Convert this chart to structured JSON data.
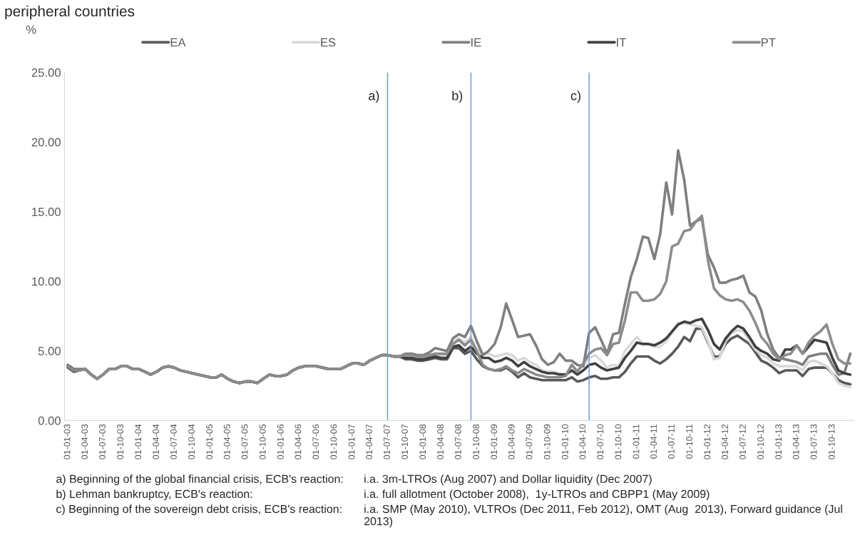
{
  "chart_data": {
    "type": "line",
    "title": "peripheral countries",
    "ylabel": "%",
    "x": [
      "2003-01",
      "2003-02",
      "2003-03",
      "2003-04",
      "2003-05",
      "2003-06",
      "2003-07",
      "2003-08",
      "2003-09",
      "2003-10",
      "2003-11",
      "2003-12",
      "2004-01",
      "2004-02",
      "2004-03",
      "2004-04",
      "2004-05",
      "2004-06",
      "2004-07",
      "2004-08",
      "2004-09",
      "2004-10",
      "2004-11",
      "2004-12",
      "2005-01",
      "2005-02",
      "2005-03",
      "2005-04",
      "2005-05",
      "2005-06",
      "2005-07",
      "2005-08",
      "2005-09",
      "2005-10",
      "2005-11",
      "2005-12",
      "2006-01",
      "2006-02",
      "2006-03",
      "2006-04",
      "2006-05",
      "2006-06",
      "2006-07",
      "2006-08",
      "2006-09",
      "2006-10",
      "2006-11",
      "2006-12",
      "2007-01",
      "2007-02",
      "2007-03",
      "2007-04",
      "2007-05",
      "2007-06",
      "2007-07",
      "2007-08",
      "2007-09",
      "2007-10",
      "2007-11",
      "2007-12",
      "2008-01",
      "2008-02",
      "2008-03",
      "2008-04",
      "2008-05",
      "2008-06",
      "2008-07",
      "2008-08",
      "2008-09",
      "2008-10",
      "2008-11",
      "2008-12",
      "2009-01",
      "2009-02",
      "2009-03",
      "2009-04",
      "2009-05",
      "2009-06",
      "2009-07",
      "2009-08",
      "2009-09",
      "2009-10",
      "2009-11",
      "2009-12",
      "2010-01",
      "2010-02",
      "2010-03",
      "2010-04",
      "2010-05",
      "2010-06",
      "2010-07",
      "2010-08",
      "2010-09",
      "2010-10",
      "2010-11",
      "2010-12",
      "2011-01",
      "2011-02",
      "2011-03",
      "2011-04",
      "2011-05",
      "2011-06",
      "2011-07",
      "2011-08",
      "2011-09",
      "2011-10",
      "2011-11",
      "2011-12",
      "2012-01",
      "2012-02",
      "2012-03",
      "2012-04",
      "2012-05",
      "2012-06",
      "2012-07",
      "2012-08",
      "2012-09",
      "2012-10",
      "2012-11",
      "2012-12",
      "2013-01",
      "2013-02",
      "2013-03",
      "2013-04",
      "2013-05",
      "2013-06",
      "2013-07",
      "2013-08",
      "2013-09",
      "2013-10",
      "2013-11",
      "2013-12",
      "2014-01"
    ],
    "series": [
      {
        "name": "EA",
        "color": "#595959",
        "values": [
          3.8,
          3.5,
          3.6,
          3.7,
          3.3,
          3.0,
          3.3,
          3.7,
          3.7,
          3.9,
          3.9,
          3.7,
          3.7,
          3.5,
          3.3,
          3.5,
          3.8,
          3.9,
          3.8,
          3.6,
          3.5,
          3.4,
          3.3,
          3.2,
          3.1,
          3.1,
          3.3,
          3.0,
          2.8,
          2.7,
          2.8,
          2.8,
          2.7,
          3.0,
          3.3,
          3.2,
          3.2,
          3.3,
          3.6,
          3.8,
          3.9,
          3.9,
          3.9,
          3.8,
          3.7,
          3.7,
          3.7,
          3.9,
          4.1,
          4.1,
          4.0,
          4.3,
          4.5,
          4.7,
          4.7,
          4.6,
          4.6,
          4.4,
          4.4,
          4.3,
          4.3,
          4.4,
          4.5,
          4.4,
          4.4,
          5.2,
          5.2,
          4.8,
          5.0,
          4.4,
          3.9,
          3.7,
          3.6,
          3.6,
          3.8,
          3.5,
          3.1,
          3.4,
          3.1,
          3.0,
          2.9,
          2.9,
          2.9,
          2.9,
          2.9,
          3.1,
          2.8,
          2.9,
          3.1,
          3.2,
          3.0,
          3.0,
          3.1,
          3.1,
          3.5,
          4.1,
          4.6,
          4.6,
          4.6,
          4.3,
          4.1,
          4.4,
          4.8,
          5.3,
          6.0,
          5.7,
          6.6,
          6.6,
          5.6,
          4.6,
          4.6,
          5.5,
          5.9,
          6.1,
          5.8,
          5.5,
          4.9,
          4.3,
          4.1,
          3.8,
          3.4,
          3.6,
          3.6,
          3.6,
          3.2,
          3.7,
          3.8,
          3.8,
          3.8,
          3.4,
          2.9,
          2.7,
          2.6
        ]
      },
      {
        "name": "ES",
        "color": "#d9d9d9",
        "values": [
          3.9,
          3.6,
          3.6,
          3.7,
          3.3,
          3.0,
          3.3,
          3.7,
          3.7,
          3.9,
          3.9,
          3.7,
          3.7,
          3.5,
          3.3,
          3.5,
          3.8,
          3.9,
          3.8,
          3.6,
          3.5,
          3.4,
          3.3,
          3.2,
          3.1,
          3.1,
          3.3,
          3.0,
          2.8,
          2.7,
          2.8,
          2.8,
          2.7,
          3.0,
          3.3,
          3.2,
          3.2,
          3.3,
          3.6,
          3.8,
          3.9,
          3.9,
          3.9,
          3.8,
          3.7,
          3.7,
          3.7,
          3.9,
          4.1,
          4.1,
          4.0,
          4.3,
          4.5,
          4.7,
          4.7,
          4.6,
          4.6,
          4.6,
          4.6,
          4.5,
          4.5,
          4.6,
          4.7,
          4.7,
          4.7,
          5.6,
          5.9,
          5.6,
          6.0,
          5.1,
          4.8,
          4.8,
          4.6,
          4.7,
          4.8,
          4.7,
          4.3,
          4.5,
          4.2,
          4.0,
          3.6,
          3.5,
          3.5,
          3.4,
          3.3,
          4.0,
          3.6,
          3.9,
          4.5,
          4.7,
          4.3,
          3.8,
          4.0,
          3.9,
          5.0,
          5.5,
          6.0,
          5.5,
          5.5,
          5.3,
          5.3,
          5.7,
          6.3,
          7.0,
          7.0,
          6.9,
          6.8,
          6.7,
          5.7,
          4.4,
          4.5,
          5.7,
          6.3,
          6.5,
          6.4,
          5.7,
          5.1,
          4.7,
          4.5,
          4.1,
          3.9,
          3.9,
          3.9,
          3.9,
          3.6,
          4.2,
          4.3,
          4.1,
          3.9,
          3.4,
          2.7,
          2.5,
          2.4
        ]
      },
      {
        "name": "IE",
        "color": "#7f7f7f",
        "values": [
          4.0,
          3.7,
          3.7,
          3.7,
          3.3,
          3.0,
          3.3,
          3.7,
          3.7,
          3.9,
          3.9,
          3.7,
          3.7,
          3.5,
          3.3,
          3.5,
          3.8,
          3.9,
          3.8,
          3.6,
          3.5,
          3.4,
          3.3,
          3.2,
          3.1,
          3.1,
          3.3,
          3.0,
          2.8,
          2.7,
          2.8,
          2.8,
          2.7,
          3.0,
          3.3,
          3.2,
          3.2,
          3.3,
          3.6,
          3.8,
          3.9,
          3.9,
          3.9,
          3.8,
          3.7,
          3.7,
          3.7,
          3.9,
          4.1,
          4.1,
          4.0,
          4.3,
          4.5,
          4.7,
          4.7,
          4.6,
          4.6,
          4.8,
          4.8,
          4.7,
          4.7,
          4.9,
          5.2,
          5.1,
          5.0,
          5.9,
          6.2,
          6.0,
          6.8,
          5.7,
          4.7,
          5.0,
          5.5,
          6.7,
          8.4,
          7.2,
          6.0,
          6.1,
          6.2,
          5.4,
          4.4,
          4.0,
          4.2,
          4.8,
          4.3,
          4.3,
          4.0,
          3.9,
          6.3,
          6.7,
          5.8,
          4.8,
          6.2,
          6.3,
          8.4,
          10.3,
          11.6,
          13.2,
          13.1,
          11.6,
          13.4,
          17.1,
          14.8,
          19.4,
          17.3,
          14.0,
          14.3,
          14.5,
          11.9,
          11.0,
          9.9,
          9.9,
          10.1,
          10.2,
          10.4,
          9.2,
          8.9,
          7.9,
          6.2,
          5.1,
          4.5,
          4.4,
          4.3,
          4.2,
          4.0,
          4.6,
          4.7,
          4.8,
          4.8,
          4.0,
          3.3,
          3.4,
          4.8
        ]
      },
      {
        "name": "IT",
        "color": "#404040",
        "values": [
          3.9,
          3.6,
          3.6,
          3.7,
          3.3,
          3.0,
          3.3,
          3.7,
          3.7,
          3.9,
          3.9,
          3.7,
          3.7,
          3.5,
          3.3,
          3.5,
          3.8,
          3.9,
          3.8,
          3.6,
          3.5,
          3.4,
          3.3,
          3.2,
          3.1,
          3.1,
          3.3,
          3.0,
          2.8,
          2.7,
          2.8,
          2.8,
          2.7,
          3.0,
          3.3,
          3.2,
          3.2,
          3.3,
          3.6,
          3.8,
          3.9,
          3.9,
          3.9,
          3.8,
          3.7,
          3.7,
          3.7,
          3.9,
          4.1,
          4.1,
          4.0,
          4.3,
          4.5,
          4.7,
          4.7,
          4.6,
          4.6,
          4.5,
          4.5,
          4.4,
          4.4,
          4.5,
          4.6,
          4.5,
          4.5,
          5.3,
          5.4,
          5.0,
          5.3,
          4.8,
          4.5,
          4.5,
          4.2,
          4.3,
          4.5,
          4.3,
          3.9,
          4.2,
          3.9,
          3.7,
          3.5,
          3.4,
          3.4,
          3.3,
          3.3,
          3.6,
          3.3,
          3.6,
          4.0,
          4.1,
          3.8,
          3.6,
          3.7,
          3.8,
          4.5,
          5.0,
          5.6,
          5.5,
          5.5,
          5.4,
          5.6,
          5.9,
          6.4,
          6.9,
          7.1,
          7.0,
          7.2,
          7.3,
          6.5,
          5.5,
          5.1,
          5.9,
          6.4,
          6.8,
          6.6,
          6.0,
          5.3,
          5.0,
          4.8,
          4.4,
          4.3,
          5.1,
          5.1,
          5.4,
          4.8,
          5.3,
          5.8,
          5.7,
          5.6,
          4.5,
          3.6,
          3.4,
          3.3
        ]
      },
      {
        "name": "PT",
        "color": "#8c8c8c",
        "values": [
          3.9,
          3.6,
          3.6,
          3.7,
          3.3,
          3.0,
          3.3,
          3.7,
          3.7,
          3.9,
          3.9,
          3.7,
          3.7,
          3.5,
          3.3,
          3.5,
          3.8,
          3.9,
          3.8,
          3.6,
          3.5,
          3.4,
          3.3,
          3.2,
          3.1,
          3.1,
          3.3,
          3.0,
          2.8,
          2.7,
          2.8,
          2.8,
          2.7,
          3.0,
          3.3,
          3.2,
          3.2,
          3.3,
          3.6,
          3.8,
          3.9,
          3.9,
          3.9,
          3.8,
          3.7,
          3.7,
          3.7,
          3.9,
          4.1,
          4.1,
          4.0,
          4.3,
          4.5,
          4.7,
          4.7,
          4.6,
          4.6,
          4.7,
          4.7,
          4.6,
          4.6,
          4.7,
          4.8,
          4.8,
          4.8,
          5.5,
          5.8,
          5.4,
          5.8,
          5.0,
          4.0,
          3.7,
          3.6,
          3.7,
          3.9,
          3.6,
          3.4,
          3.7,
          3.5,
          3.3,
          3.2,
          3.1,
          3.1,
          3.1,
          3.2,
          4.0,
          3.5,
          4.1,
          4.8,
          5.1,
          5.2,
          4.7,
          5.5,
          5.6,
          7.2,
          9.2,
          9.2,
          8.6,
          8.6,
          8.7,
          9.1,
          10.0,
          12.5,
          12.7,
          13.6,
          13.7,
          14.3,
          14.7,
          11.5,
          9.5,
          9.0,
          8.7,
          8.6,
          8.7,
          8.5,
          7.9,
          7.0,
          6.0,
          5.5,
          4.8,
          4.4,
          4.7,
          4.8,
          5.4,
          4.8,
          5.6,
          6.1,
          6.4,
          6.9,
          5.5,
          4.4,
          4.1,
          4.1
        ]
      }
    ],
    "xlim": [
      "2002-12-15",
      "2014-01-20"
    ],
    "xticks": [
      {
        "value": "2003-01",
        "label": "01-01-03"
      },
      {
        "value": "2003-04",
        "label": "01-04-03"
      },
      {
        "value": "2003-07",
        "label": "01-07-03"
      },
      {
        "value": "2003-10",
        "label": "01-10-03"
      },
      {
        "value": "2004-01",
        "label": "01-01-04"
      },
      {
        "value": "2004-04",
        "label": "01-04-04"
      },
      {
        "value": "2004-07",
        "label": "01-07-04"
      },
      {
        "value": "2004-10",
        "label": "01-10-04"
      },
      {
        "value": "2005-01",
        "label": "01-01-05"
      },
      {
        "value": "2005-04",
        "label": "01-04-05"
      },
      {
        "value": "2005-07",
        "label": "01-07-05"
      },
      {
        "value": "2005-10",
        "label": "01-10-05"
      },
      {
        "value": "2006-01",
        "label": "01-01-06"
      },
      {
        "value": "2006-04",
        "label": "01-04-06"
      },
      {
        "value": "2006-07",
        "label": "01-07-06"
      },
      {
        "value": "2006-10",
        "label": "01-10-06"
      },
      {
        "value": "2007-01",
        "label": "01-01-07"
      },
      {
        "value": "2007-04",
        "label": "01-04-07"
      },
      {
        "value": "2007-07",
        "label": "01-07-07"
      },
      {
        "value": "2007-10",
        "label": "01-10-07"
      },
      {
        "value": "2008-01",
        "label": "01-01-08"
      },
      {
        "value": "2008-04",
        "label": "01-04-08"
      },
      {
        "value": "2008-07",
        "label": "01-07-08"
      },
      {
        "value": "2008-10",
        "label": "01-10-08"
      },
      {
        "value": "2009-01",
        "label": "01-01-09"
      },
      {
        "value": "2009-04",
        "label": "01-04-09"
      },
      {
        "value": "2009-07",
        "label": "01-07-09"
      },
      {
        "value": "2009-10",
        "label": "01-10-09"
      },
      {
        "value": "2010-01",
        "label": "01-01-10"
      },
      {
        "value": "2010-04",
        "label": "01-04-10"
      },
      {
        "value": "2010-07",
        "label": "01-07-10"
      },
      {
        "value": "2010-10",
        "label": "01-10-10"
      },
      {
        "value": "2011-01",
        "label": "01-01-11"
      },
      {
        "value": "2011-04",
        "label": "01-04-11"
      },
      {
        "value": "2011-07",
        "label": "01-07-11"
      },
      {
        "value": "2011-10",
        "label": "01-10-11"
      },
      {
        "value": "2012-01",
        "label": "01-01-12"
      },
      {
        "value": "2012-04",
        "label": "01-04-12"
      },
      {
        "value": "2012-07",
        "label": "01-07-12"
      },
      {
        "value": "2012-10",
        "label": "01-10-12"
      },
      {
        "value": "2013-01",
        "label": "01-01-13"
      },
      {
        "value": "2013-04",
        "label": "01-04-13"
      },
      {
        "value": "2013-07",
        "label": "01-07-13"
      },
      {
        "value": "2013-10",
        "label": "01-10-13"
      }
    ],
    "ylim": [
      0,
      25
    ],
    "yticks": [
      {
        "value": 0,
        "label": "0.00"
      },
      {
        "value": 5,
        "label": "5.00"
      },
      {
        "value": 10,
        "label": "10.00"
      },
      {
        "value": 15,
        "label": "15.00"
      },
      {
        "value": 20,
        "label": "20.00"
      },
      {
        "value": 25,
        "label": "25.00"
      }
    ],
    "ref_lines": [
      {
        "axis": "x",
        "value": "2007-07",
        "label": "a)",
        "color": "#5b9bd5"
      },
      {
        "axis": "x",
        "value": "2008-09",
        "label": "b)",
        "color": "#5b9bd5"
      },
      {
        "axis": "x",
        "value": "2010-05",
        "label": "c)",
        "color": "#5b9bd5"
      }
    ],
    "annotations": [
      "a) Beginning of the global financial crisis, ECB's reaction:",
      "i.a. 3m-LTROs (Aug 2007) and Dollar liquidity (Dec 2007)",
      "b) Lehman bankruptcy, ECB's reaction:",
      "i.a. full allotment (October 2008),  1y-LTROs and CBPP1 (May 2009)",
      "c) Beginning of the sovereign debt crisis, ECB's reaction:",
      "i.a. SMP (May 2010), VLTROs (Dec 2011, Feb 2012), OMT (Aug  2013), Forward guidance (Jul 2013)"
    ],
    "legend": "top",
    "grid": false,
    "marker": "none",
    "line_style": "solid"
  }
}
